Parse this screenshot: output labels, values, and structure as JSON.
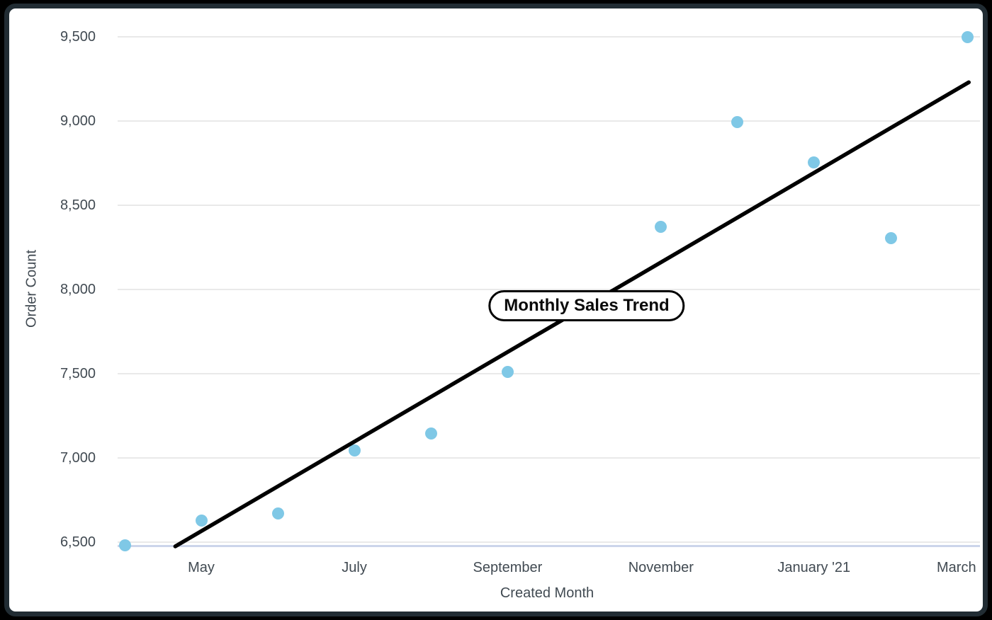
{
  "window": {
    "background_color": "#000000",
    "frame_color": "#212c33",
    "card_background": "#ffffff"
  },
  "chart_data": {
    "type": "scatter",
    "title": "Monthly Sales Trend",
    "xlabel": "Created Month",
    "ylabel": "Order Count",
    "grid": "horizontal-only",
    "legend": "none",
    "ylim": [
      6475,
      9595
    ],
    "x_span_months": [
      "April '20",
      "March '21"
    ],
    "y_axis": {
      "ticks": [
        {
          "label": "6,500",
          "value": 6500
        },
        {
          "label": "7,000",
          "value": 7000
        },
        {
          "label": "7,500",
          "value": 7500
        },
        {
          "label": "8,000",
          "value": 8000
        },
        {
          "label": "8,500",
          "value": 8500
        },
        {
          "label": "9,000",
          "value": 9000
        },
        {
          "label": "9,500",
          "value": 9500
        }
      ]
    },
    "x_axis": {
      "ticks": [
        {
          "label": "May",
          "month_index": 1
        },
        {
          "label": "July",
          "month_index": 3
        },
        {
          "label": "September",
          "month_index": 5
        },
        {
          "label": "November",
          "month_index": 7
        },
        {
          "label": "January '21",
          "month_index": 9
        },
        {
          "label": "March",
          "month_index": 11
        }
      ]
    },
    "points": [
      {
        "month": "April",
        "month_index": 0,
        "order_count": 6480
      },
      {
        "month": "May",
        "month_index": 1,
        "order_count": 6630
      },
      {
        "month": "June",
        "month_index": 2,
        "order_count": 6670
      },
      {
        "month": "July",
        "month_index": 3,
        "order_count": 7045
      },
      {
        "month": "August",
        "month_index": 4,
        "order_count": 7145
      },
      {
        "month": "September",
        "month_index": 5,
        "order_count": 7510
      },
      {
        "month": "November",
        "month_index": 7,
        "order_count": 8370
      },
      {
        "month": "December",
        "month_index": 8,
        "order_count": 8995
      },
      {
        "month": "January '21",
        "month_index": 9,
        "order_count": 8755
      },
      {
        "month": "February",
        "month_index": 10,
        "order_count": 8305
      },
      {
        "month": "March",
        "month_index": 11,
        "order_count": 9500
      }
    ],
    "trendline": {
      "from": {
        "month_position": 0.66,
        "value": 6475
      },
      "to": {
        "month_position": 11.02,
        "value": 9230
      }
    },
    "colors": {
      "point": "#7fc8e6",
      "trendline": "#000000",
      "gridline": "#e9e9e9",
      "axis_line": "#ccd5ea",
      "tick_text": "#414a52",
      "title_text": "#0a0a0a",
      "pill_border": "#000000",
      "pill_background": "#ffffff"
    }
  }
}
